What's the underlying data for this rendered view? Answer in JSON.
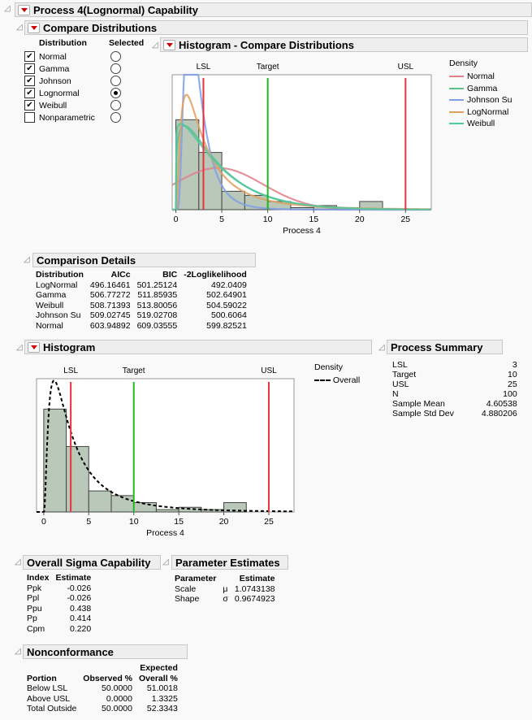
{
  "title": "Process 4(Lognormal) Capability",
  "compare": {
    "title": "Compare Distributions",
    "col_distribution": "Distribution",
    "col_selected": "Selected",
    "items": [
      {
        "label": "Normal",
        "checked": true,
        "selected": false
      },
      {
        "label": "Gamma",
        "checked": true,
        "selected": false
      },
      {
        "label": "Johnson",
        "checked": true,
        "selected": false
      },
      {
        "label": "Lognormal",
        "checked": true,
        "selected": true
      },
      {
        "label": "Weibull",
        "checked": true,
        "selected": false
      },
      {
        "label": "Nonparametric",
        "checked": false,
        "selected": false
      }
    ]
  },
  "hist_compare": {
    "title": "Histogram - Compare Distributions",
    "legend_title": "Density",
    "legend": [
      {
        "label": "Normal",
        "color": "#e0808a"
      },
      {
        "label": "Gamma",
        "color": "#5fc08a"
      },
      {
        "label": "Johnson Su",
        "color": "#7f9fe6"
      },
      {
        "label": "LogNormal",
        "color": "#e0a060"
      },
      {
        "label": "Weibull",
        "color": "#50c8a0"
      }
    ]
  },
  "comparison": {
    "title": "Comparison Details",
    "headers": [
      "Distribution",
      "AICc",
      "BIC",
      "-2Loglikelihood"
    ],
    "rows": [
      [
        "LogNormal",
        "496.16461",
        "501.25124",
        "492.0409"
      ],
      [
        "Gamma",
        "506.77272",
        "511.85935",
        "502.64901"
      ],
      [
        "Weibull",
        "508.71393",
        "513.80056",
        "504.59022"
      ],
      [
        "Johnson Su",
        "509.02745",
        "519.02708",
        "500.6064"
      ],
      [
        "Normal",
        "603.94892",
        "609.03555",
        "599.82521"
      ]
    ]
  },
  "histogram": {
    "title": "Histogram",
    "legend_title": "Density",
    "legend_item": "Overall"
  },
  "process_summary": {
    "title": "Process Summary",
    "rows": [
      [
        "LSL",
        "3"
      ],
      [
        "Target",
        "10"
      ],
      [
        "USL",
        "25"
      ],
      [
        "N",
        "100"
      ],
      [
        "Sample Mean",
        "4.60538"
      ],
      [
        "Sample Std Dev",
        "4.880206"
      ]
    ]
  },
  "sigma": {
    "title": "Overall Sigma Capability",
    "headers": [
      "Index",
      "Estimate"
    ],
    "rows": [
      [
        "Ppk",
        "-0.026"
      ],
      [
        "Ppl",
        "-0.026"
      ],
      [
        "Ppu",
        "0.438"
      ],
      [
        "Pp",
        "0.414"
      ],
      [
        "Cpm",
        "0.220"
      ]
    ]
  },
  "params": {
    "title": "Parameter Estimates",
    "headers": [
      "Parameter",
      "Estimate"
    ],
    "rows": [
      [
        "Scale",
        "μ",
        "1.0743138"
      ],
      [
        "Shape",
        "σ",
        "0.9674923"
      ]
    ]
  },
  "nonconf": {
    "title": "Nonconformance",
    "header_top": "Expected",
    "headers": [
      "Portion",
      "Observed %",
      "Overall %"
    ],
    "rows": [
      [
        "Below LSL",
        "50.0000",
        "51.0018"
      ],
      [
        "Above USL",
        "0.0000",
        "1.3325"
      ],
      [
        "Total Outside",
        "50.0000",
        "52.3343"
      ]
    ]
  },
  "chart_data": [
    {
      "type": "bar",
      "title": "Histogram - Compare Distributions",
      "xlabel": "Process 4",
      "xlim": [
        -0.4,
        27.8
      ],
      "ylim": [
        0,
        66
      ],
      "xticks": [
        0,
        5,
        10,
        15,
        20,
        25
      ],
      "bin_width": 2.5,
      "bin_starts": [
        0,
        2.5,
        5,
        7.5,
        10,
        12.5,
        15,
        17.5,
        20
      ],
      "counts": [
        44,
        28,
        9,
        7,
        4,
        1,
        2,
        1,
        4
      ],
      "spec_lines": [
        {
          "label": "LSL",
          "value": 3,
          "color": "#e8323c"
        },
        {
          "label": "Target",
          "value": 10,
          "color": "#22b822"
        },
        {
          "label": "USL",
          "value": 25,
          "color": "#e8323c"
        }
      ],
      "curves": [
        {
          "name": "Normal",
          "dist": "normal",
          "p": [
            4.605,
            4.88
          ],
          "color": "#e0808a"
        },
        {
          "name": "Gamma",
          "dist": "gamma",
          "p": [
            1.25,
            3.7
          ],
          "color": "#5fc08a"
        },
        {
          "name": "Johnson Su",
          "dist": "lognormal",
          "p": [
            0.75,
            0.6
          ],
          "color": "#7f9fe6"
        },
        {
          "name": "LogNormal",
          "dist": "lognormal",
          "p": [
            1.0743138,
            0.9674923
          ],
          "color": "#e0a060"
        },
        {
          "name": "Weibull",
          "dist": "weibull",
          "p": [
            1.1,
            4.8
          ],
          "color": "#50c8a0"
        }
      ]
    },
    {
      "type": "bar",
      "title": "Histogram",
      "xlabel": "Process 4",
      "xlim": [
        -0.8,
        27.8
      ],
      "ylim": [
        0,
        57
      ],
      "xticks": [
        0,
        5,
        10,
        15,
        20,
        25
      ],
      "bin_width": 2.5,
      "bin_starts": [
        0,
        2.5,
        5,
        7.5,
        10,
        12.5,
        15,
        17.5,
        20
      ],
      "counts": [
        44,
        28,
        9,
        7,
        4,
        1,
        2,
        1,
        4
      ],
      "spec_lines": [
        {
          "label": "LSL",
          "value": 3,
          "color": "#e8323c"
        },
        {
          "label": "Target",
          "value": 10,
          "color": "#22b822"
        },
        {
          "label": "USL",
          "value": 25,
          "color": "#e8323c"
        }
      ],
      "curves": [
        {
          "name": "Overall",
          "dist": "lognormal",
          "p": [
            1.0743138,
            0.9674923
          ],
          "color": "#000",
          "dashed": true
        }
      ]
    }
  ]
}
